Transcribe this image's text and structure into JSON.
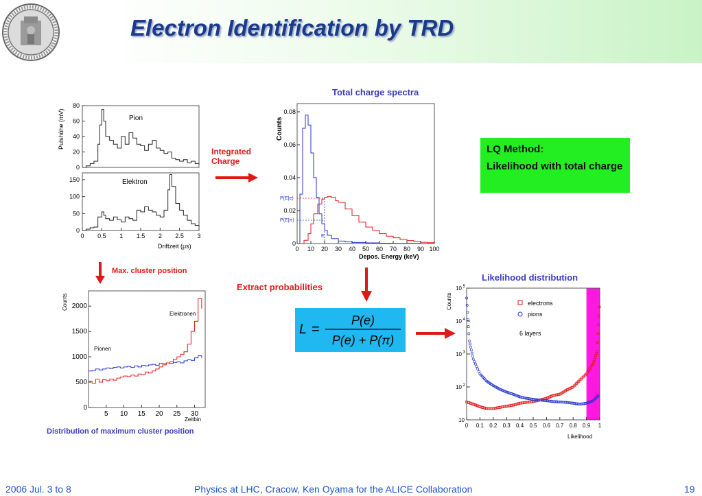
{
  "slide": {
    "title": "Electron Identification by TRD",
    "lq_box": {
      "heading": "LQ Method:",
      "body": "Likelihood with total charge"
    },
    "labels": {
      "integrated_charge": "Integrated\nCharge",
      "max_cluster": "Max. cluster position",
      "extract_prob": "Extract probabilities",
      "dist_caption": "Distribution of maximum cluster position"
    },
    "formula": {
      "lhs": "L",
      "num": "P(e)",
      "den": "P(e) + P(π)"
    },
    "footer": {
      "date": "2006 Jul. 3 to 8",
      "center": "Physics at LHC, Cracow, Ken Oyama for the ALICE Collaboration",
      "page": "19"
    },
    "colors": {
      "title": "#1a3a8a",
      "red": "#e01818",
      "blue": "#2233cc",
      "green_box": "#22ee22",
      "cyan_box": "#1fb8f0",
      "magenta": "#ff00dd"
    }
  },
  "chart_data": [
    {
      "id": "pulse-height",
      "type": "line",
      "xlabel": "Driftzeit (μs)",
      "xlim": [
        0,
        3
      ],
      "xticks": [
        "0",
        "0.5",
        "1",
        "1.5",
        "2",
        "2.5",
        "3"
      ],
      "panels": [
        {
          "name": "Pion",
          "ylabel": "Pulshöhe (mV)",
          "ylim": [
            0,
            80
          ],
          "yticks": [
            "0",
            "20",
            "40",
            "60",
            "80"
          ],
          "x": [
            0,
            0.1,
            0.2,
            0.3,
            0.4,
            0.45,
            0.5,
            0.55,
            0.6,
            0.7,
            0.8,
            0.9,
            1.0,
            1.1,
            1.2,
            1.3,
            1.4,
            1.5,
            1.6,
            1.7,
            1.8,
            1.9,
            2.0,
            2.1,
            2.2,
            2.3,
            2.4,
            2.5,
            2.6,
            2.7,
            2.8,
            2.9,
            3.0
          ],
          "y": [
            0,
            2,
            5,
            8,
            30,
            55,
            75,
            60,
            40,
            35,
            30,
            25,
            40,
            30,
            45,
            38,
            30,
            28,
            22,
            30,
            35,
            25,
            22,
            18,
            20,
            12,
            10,
            8,
            10,
            6,
            8,
            5,
            4
          ]
        },
        {
          "name": "Elektron",
          "ylim": [
            0,
            170
          ],
          "yticks": [
            "0",
            "50",
            "100",
            "150"
          ],
          "x": [
            0,
            0.1,
            0.2,
            0.3,
            0.4,
            0.5,
            0.55,
            0.6,
            0.7,
            0.8,
            0.9,
            1.0,
            1.1,
            1.2,
            1.3,
            1.4,
            1.5,
            1.6,
            1.7,
            1.8,
            1.9,
            2.0,
            2.1,
            2.2,
            2.25,
            2.3,
            2.4,
            2.5,
            2.6,
            2.7,
            2.8,
            2.9,
            3.0
          ],
          "y": [
            0,
            4,
            8,
            10,
            40,
            55,
            45,
            35,
            30,
            40,
            32,
            25,
            40,
            35,
            30,
            60,
            55,
            70,
            60,
            55,
            45,
            40,
            60,
            120,
            165,
            130,
            80,
            60,
            45,
            30,
            20,
            15,
            10
          ]
        }
      ]
    },
    {
      "id": "total-charge",
      "type": "line",
      "title": "Total charge spectra",
      "xlabel": "Depos. Energy (keV)",
      "ylabel": "Counts",
      "xlim": [
        0,
        100
      ],
      "ylim": [
        0,
        0.085
      ],
      "xticks": [
        "0",
        "10",
        "20",
        "30",
        "40",
        "50",
        "60",
        "70",
        "80",
        "90",
        "100"
      ],
      "yticks": [
        "0",
        "0.02",
        "0.04",
        "0.06",
        "0.08"
      ],
      "annotations": [
        "P(E|e)",
        "P(E|π)",
        "E"
      ],
      "series": [
        {
          "color": "#2233cc",
          "x": [
            0,
            2,
            4,
            6,
            8,
            10,
            12,
            14,
            16,
            18,
            20,
            22,
            25,
            30,
            35,
            40,
            50,
            60,
            70,
            80,
            90,
            100
          ],
          "y": [
            0,
            0.03,
            0.07,
            0.078,
            0.072,
            0.055,
            0.04,
            0.028,
            0.018,
            0.012,
            0.008,
            0.005,
            0.003,
            0.0015,
            0.001,
            0.0007,
            0.0004,
            0.0002,
            0.0001,
            0.0001,
            0,
            0
          ]
        },
        {
          "color": "#e01818",
          "x": [
            0,
            5,
            8,
            10,
            12,
            15,
            18,
            20,
            22,
            25,
            28,
            30,
            35,
            40,
            45,
            50,
            55,
            60,
            65,
            70,
            75,
            80,
            85,
            90,
            95,
            100
          ],
          "y": [
            0,
            0.002,
            0.006,
            0.012,
            0.018,
            0.024,
            0.027,
            0.028,
            0.0285,
            0.028,
            0.026,
            0.025,
            0.021,
            0.017,
            0.013,
            0.01,
            0.008,
            0.006,
            0.0045,
            0.0035,
            0.0025,
            0.0018,
            0.0012,
            0.0008,
            0.0005,
            0.0003
          ]
        }
      ]
    },
    {
      "id": "max-cluster",
      "type": "line",
      "xlabel": "Zeitbin",
      "ylabel": "Counts",
      "xlim": [
        0,
        33
      ],
      "ylim": [
        0,
        2300
      ],
      "xticks": [
        "5",
        "10",
        "15",
        "20",
        "25",
        "30"
      ],
      "yticks": [
        "0",
        "500",
        "1000",
        "1500",
        "2000"
      ],
      "series": [
        {
          "name": "Pionen",
          "color": "#2233cc",
          "x": [
            0,
            1,
            2,
            3,
            4,
            5,
            6,
            7,
            8,
            9,
            10,
            11,
            12,
            13,
            14,
            15,
            16,
            17,
            18,
            19,
            20,
            21,
            22,
            23,
            24,
            25,
            26,
            27,
            28,
            29,
            30,
            31,
            32
          ],
          "y": [
            720,
            730,
            760,
            740,
            760,
            780,
            770,
            790,
            800,
            780,
            800,
            810,
            790,
            820,
            800,
            830,
            820,
            840,
            850,
            830,
            870,
            860,
            880,
            870,
            890,
            900,
            880,
            920,
            940,
            930,
            980,
            1020,
            980
          ]
        },
        {
          "name": "Elektronen",
          "color": "#e01818",
          "x": [
            0,
            1,
            2,
            3,
            4,
            5,
            6,
            7,
            8,
            9,
            10,
            11,
            12,
            13,
            14,
            15,
            16,
            17,
            18,
            19,
            20,
            21,
            22,
            23,
            24,
            25,
            26,
            27,
            28,
            29,
            30,
            31,
            32
          ],
          "y": [
            520,
            480,
            560,
            500,
            550,
            530,
            560,
            540,
            580,
            600,
            620,
            610,
            640,
            620,
            660,
            650,
            700,
            680,
            720,
            760,
            800,
            840,
            880,
            900,
            950,
            1000,
            1050,
            1100,
            1250,
            1500,
            1700,
            2150,
            1950
          ]
        }
      ]
    },
    {
      "id": "likelihood",
      "type": "scatter",
      "title": "Likelihood distribution",
      "xlabel": "Likelihood",
      "ylabel": "Counts",
      "xlim": [
        0,
        1
      ],
      "log_y": true,
      "xticks": [
        "0",
        "0.1",
        "0.2",
        "0.3",
        "0.4",
        "0.5",
        "0.6",
        "0.7",
        "0.8",
        "0.9",
        "1"
      ],
      "annotation": "6 layers",
      "series": [
        {
          "name": "electrons",
          "color": "#e01818",
          "x": [
            0,
            0.05,
            0.1,
            0.15,
            0.2,
            0.25,
            0.3,
            0.35,
            0.4,
            0.45,
            0.5,
            0.55,
            0.6,
            0.65,
            0.7,
            0.75,
            0.8,
            0.85,
            0.9,
            0.95,
            0.98,
            1.0
          ],
          "y": [
            35,
            30,
            25,
            22,
            22,
            24,
            26,
            28,
            32,
            34,
            36,
            40,
            45,
            55,
            60,
            80,
            100,
            160,
            250,
            500,
            1200,
            50000
          ]
        },
        {
          "name": "pions",
          "color": "#2233cc",
          "x": [
            0,
            0.02,
            0.05,
            0.1,
            0.15,
            0.2,
            0.25,
            0.3,
            0.35,
            0.4,
            0.45,
            0.5,
            0.55,
            0.6,
            0.65,
            0.7,
            0.75,
            0.8,
            0.85,
            0.9,
            0.95,
            1.0
          ],
          "y": [
            50000,
            2500,
            700,
            250,
            150,
            110,
            85,
            70,
            60,
            50,
            45,
            42,
            40,
            38,
            36,
            35,
            34,
            32,
            30,
            32,
            38,
            60
          ]
        }
      ]
    }
  ]
}
